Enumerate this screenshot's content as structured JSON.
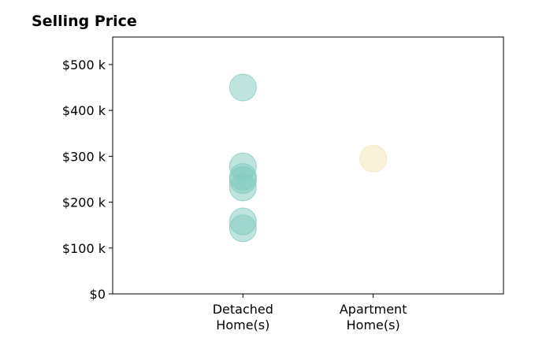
{
  "chart_data": {
    "type": "scatter",
    "title": "Selling Price",
    "xlabel": "",
    "ylabel": "",
    "categories": [
      [
        "Detached",
        "Home(s)"
      ],
      [
        "Apartment",
        "Home(s)"
      ]
    ],
    "xlim": [
      0,
      3
    ],
    "ylim": [
      0,
      560000
    ],
    "yticks": [
      0,
      100000,
      200000,
      300000,
      400000,
      500000
    ],
    "ytick_labels": [
      "$0",
      "$100 k",
      "$200 k",
      "$300 k",
      "$400 k",
      "$500 k"
    ],
    "grid": false,
    "series": [
      {
        "category": 0,
        "color": "#80c9bd",
        "values": [
          450000,
          278000,
          255000,
          248000,
          232000,
          158000,
          143000
        ]
      },
      {
        "category": 1,
        "color": "#f6e4b5",
        "values": [
          295000
        ]
      }
    ]
  }
}
